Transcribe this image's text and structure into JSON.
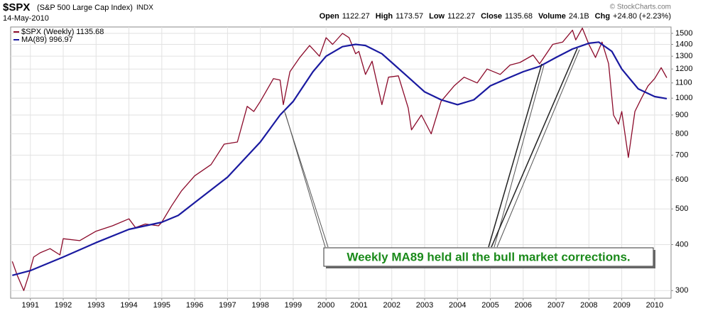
{
  "chart_data": {
    "type": "line",
    "title": "$SPX",
    "subtitle": "(S&P 500 Large Cap Index)",
    "exchange": "INDX",
    "date": "14-May-2010",
    "quote": [
      {
        "label": "Open",
        "value": "1122.27"
      },
      {
        "label": "High",
        "value": "1173.57"
      },
      {
        "label": "Low",
        "value": "1122.27"
      },
      {
        "label": "Close",
        "value": "1135.68"
      },
      {
        "label": "Volume",
        "value": "24.1B"
      },
      {
        "label": "Chg",
        "value": "+24.80 (+2.23%)"
      }
    ],
    "watermark": "© StockCharts.com",
    "annotation": "Weekly MA89 held all the bull market corrections.",
    "log_scale": true,
    "grid": true,
    "xlim": [
      1990.4,
      2010.5
    ],
    "ylim": [
      286,
      1561
    ],
    "xticks": [
      1991,
      1992,
      1993,
      1994,
      1995,
      1996,
      1997,
      1998,
      1999,
      2000,
      2001,
      2002,
      2003,
      2004,
      2005,
      2006,
      2007,
      2008,
      2009,
      2010
    ],
    "yticks": [
      300,
      400,
      500,
      600,
      700,
      800,
      900,
      1000,
      1100,
      1200,
      1300,
      1400,
      1500
    ],
    "series": [
      {
        "name": "$SPX (Weekly) 1135.68",
        "color": "#8b0a2a",
        "x": [
          1990.45,
          1990.6,
          1990.8,
          1990.95,
          1991.1,
          1991.3,
          1991.6,
          1991.9,
          1992.0,
          1992.5,
          1993.0,
          1993.5,
          1994.0,
          1994.2,
          1994.5,
          1994.9,
          1995.0,
          1995.3,
          1995.6,
          1996.0,
          1996.5,
          1996.9,
          1997.3,
          1997.6,
          1997.8,
          1998.0,
          1998.4,
          1998.6,
          1998.7,
          1998.9,
          1999.2,
          1999.5,
          1999.8,
          2000.0,
          2000.2,
          2000.5,
          2000.7,
          2000.9,
          2001.0,
          2001.2,
          2001.4,
          2001.7,
          2001.9,
          2002.2,
          2002.5,
          2002.6,
          2002.9,
          2003.2,
          2003.5,
          2003.9,
          2004.2,
          2004.6,
          2004.9,
          2005.3,
          2005.6,
          2005.9,
          2006.3,
          2006.5,
          2006.9,
          2007.2,
          2007.5,
          2007.6,
          2007.8,
          2008.0,
          2008.2,
          2008.4,
          2008.6,
          2008.75,
          2008.9,
          2009.0,
          2009.2,
          2009.4,
          2009.6,
          2009.8,
          2010.0,
          2010.2,
          2010.37
        ],
        "values": [
          360,
          330,
          300,
          330,
          370,
          380,
          390,
          375,
          415,
          410,
          435,
          450,
          470,
          445,
          455,
          450,
          460,
          510,
          560,
          615,
          660,
          750,
          760,
          950,
          920,
          980,
          1130,
          1120,
          960,
          1180,
          1290,
          1390,
          1300,
          1460,
          1400,
          1500,
          1460,
          1320,
          1340,
          1160,
          1260,
          960,
          1140,
          1150,
          940,
          820,
          900,
          800,
          980,
          1080,
          1140,
          1100,
          1200,
          1160,
          1230,
          1250,
          1310,
          1240,
          1400,
          1420,
          1530,
          1440,
          1550,
          1400,
          1290,
          1420,
          1240,
          900,
          850,
          920,
          690,
          920,
          1000,
          1080,
          1130,
          1210,
          1136
        ]
      },
      {
        "name": "MA(89) 996.97",
        "color": "#1a1aa0",
        "x": [
          1990.45,
          1991,
          1992,
          1993,
          1994,
          1995,
          1995.5,
          1996,
          1997,
          1998,
          1998.6,
          1999,
          1999.6,
          2000,
          2000.5,
          2000.9,
          2001.2,
          2001.7,
          2002,
          2002.5,
          2003,
          2003.5,
          2004,
          2004.5,
          2005,
          2005.5,
          2006,
          2006.5,
          2007,
          2007.5,
          2008,
          2008.3,
          2008.7,
          2009,
          2009.5,
          2010,
          2010.37
        ],
        "values": [
          330,
          340,
          370,
          405,
          440,
          460,
          480,
          520,
          610,
          760,
          900,
          980,
          1180,
          1300,
          1380,
          1400,
          1390,
          1320,
          1250,
          1140,
          1040,
          990,
          960,
          990,
          1080,
          1130,
          1180,
          1220,
          1290,
          1360,
          1410,
          1420,
          1340,
          1200,
          1060,
          1010,
          997
        ]
      }
    ]
  }
}
